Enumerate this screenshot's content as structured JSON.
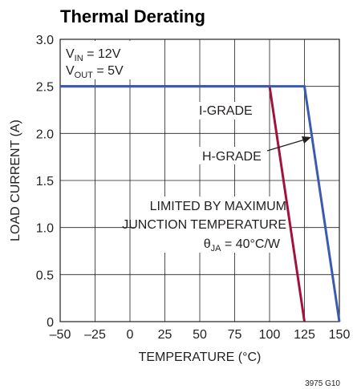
{
  "chart_data": {
    "type": "line",
    "title": "Thermal Derating",
    "xlabel": "TEMPERATURE (°C)",
    "ylabel": "LOAD CURRENT (A)",
    "xlim": [
      -50,
      150
    ],
    "ylim": [
      0,
      3.0
    ],
    "x_ticks": [
      "–50",
      "–25",
      "0",
      "25",
      "50",
      "75",
      "100",
      "125",
      "150"
    ],
    "y_ticks": [
      "0",
      "0.5",
      "1.0",
      "1.5",
      "2.0",
      "2.5",
      "3.0"
    ],
    "grid": true,
    "series": [
      {
        "name": "I-GRADE",
        "color": "#a3123a",
        "points": [
          [
            -50,
            2.5
          ],
          [
            100,
            2.5
          ],
          [
            125,
            0
          ]
        ]
      },
      {
        "name": "H-GRADE",
        "color": "#3b5bb0",
        "points": [
          [
            -50,
            2.5
          ],
          [
            125,
            2.5
          ],
          [
            150,
            0
          ]
        ]
      }
    ],
    "conditions": {
      "vin": {
        "main": "V",
        "sub": "IN",
        "rest": " = 12V"
      },
      "vout": {
        "main": "V",
        "sub": "OUT",
        "rest": " = 5V"
      }
    },
    "annotations": {
      "i_grade": "I-GRADE",
      "h_grade": "H-GRADE",
      "limit_line1": "LIMITED BY MAXIMUM",
      "limit_line2": "JUNCTION TEMPERATURE",
      "theta": {
        "main": "θ",
        "sub": "JA",
        "rest": " = 40°C/W"
      }
    }
  },
  "figure_code": "3975 G10"
}
